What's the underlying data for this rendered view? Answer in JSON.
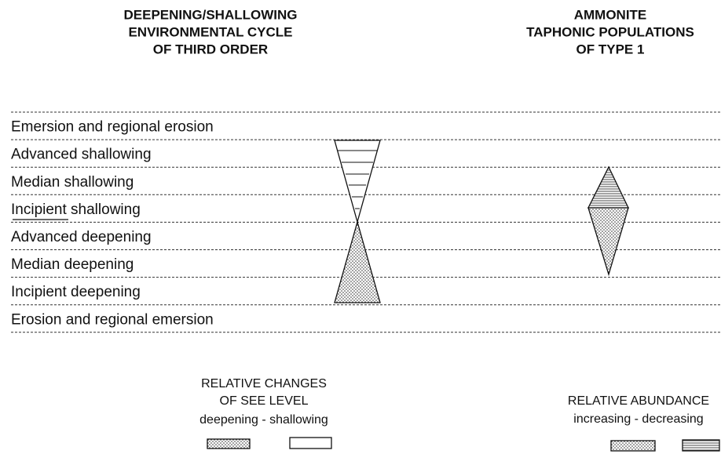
{
  "header": {
    "left": [
      "DEEPENING/SHALLOWING",
      "ENVIRONMENTAL CYCLE",
      "OF THIRD ORDER"
    ],
    "right": [
      "AMMONITE",
      "TAPHONIC POPULATIONS",
      "OF TYPE 1"
    ]
  },
  "rows": [
    "Emersion and regional erosion",
    "Advanced shallowing",
    "Median shallowing",
    "Incipient shallowing",
    "Advanced deepening",
    "Median deepening",
    "Incipient deepening",
    "Erosion and regional emersion"
  ],
  "legend": {
    "left": [
      "RELATIVE CHANGES",
      "OF SEE LEVEL",
      "deepening - shallowing"
    ],
    "right": [
      "RELATIVE ABUNDANCE",
      "increasing - decreasing"
    ]
  }
}
